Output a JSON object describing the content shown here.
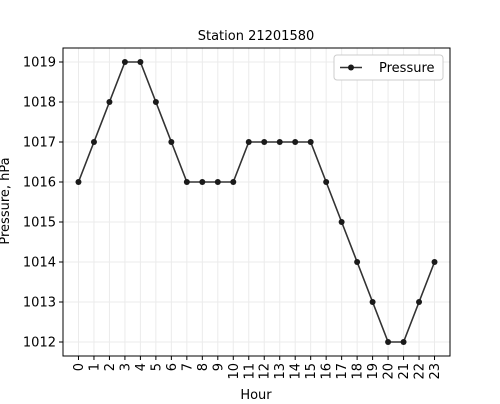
{
  "chart_data": {
    "type": "line",
    "title": "Station 21201580",
    "xlabel": "Hour",
    "ylabel": "Pressure, hPa",
    "x": [
      0,
      1,
      2,
      3,
      4,
      5,
      6,
      7,
      8,
      9,
      10,
      11,
      12,
      13,
      14,
      15,
      16,
      17,
      18,
      19,
      20,
      21,
      22,
      23
    ],
    "series": [
      {
        "name": "Pressure",
        "values": [
          1016,
          1017,
          1018,
          1019,
          1019,
          1018,
          1017,
          1016,
          1016,
          1016,
          1016,
          1017,
          1017,
          1017,
          1017,
          1017,
          1016,
          1015,
          1014,
          1013,
          1012,
          1012,
          1013,
          1014
        ],
        "color": "#333333"
      }
    ],
    "xlim": [
      -1,
      24
    ],
    "ylim": [
      1011.65,
      1019.35
    ],
    "yticks": [
      1012,
      1013,
      1014,
      1015,
      1016,
      1017,
      1018,
      1019
    ],
    "xticks": [
      0,
      1,
      2,
      3,
      4,
      5,
      6,
      7,
      8,
      9,
      10,
      11,
      12,
      13,
      14,
      15,
      16,
      17,
      18,
      19,
      20,
      21,
      22,
      23
    ],
    "grid": true,
    "legend": "top-right"
  }
}
